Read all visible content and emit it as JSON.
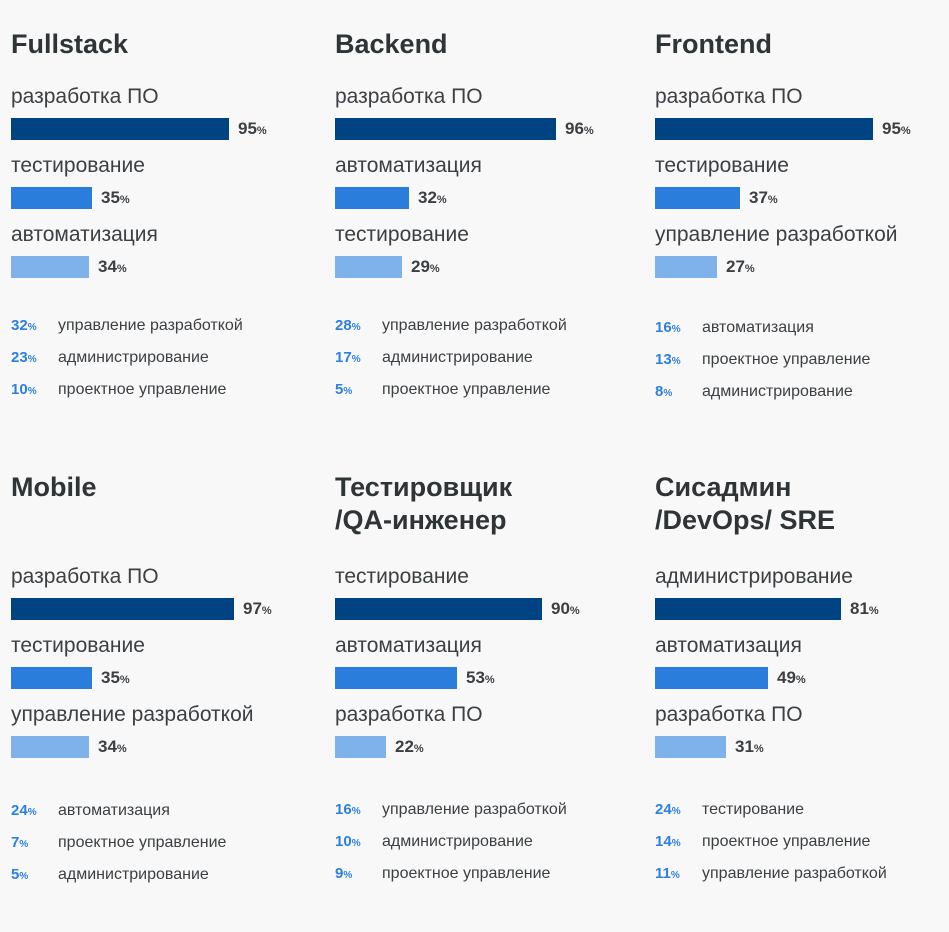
{
  "colors": {
    "rank1": "#004383",
    "rank2": "#2a7ddb",
    "rank3": "#7fb2ea",
    "accent": "#2d7fe0"
  },
  "unit": "%",
  "chart_data": [
    {
      "type": "bar",
      "title_lines": [
        "Fullstack"
      ],
      "bars": [
        {
          "label": "разработка ПО",
          "value": 95
        },
        {
          "label": "тестирование",
          "value": 35
        },
        {
          "label": "автоматизация",
          "value": 34
        }
      ],
      "others": [
        {
          "label": "управление разработкой",
          "value": 32
        },
        {
          "label": "администрирование",
          "value": 23
        },
        {
          "label": "проектное управление",
          "value": 10
        }
      ]
    },
    {
      "type": "bar",
      "title_lines": [
        "Backend"
      ],
      "bars": [
        {
          "label": "разработка ПО",
          "value": 96
        },
        {
          "label": "автоматизация",
          "value": 32
        },
        {
          "label": "тестирование",
          "value": 29
        }
      ],
      "others": [
        {
          "label": "управление разработкой",
          "value": 28
        },
        {
          "label": "администрирование",
          "value": 17
        },
        {
          "label": "проектное управление",
          "value": 5
        }
      ]
    },
    {
      "type": "bar",
      "title_lines": [
        "Frontend"
      ],
      "bars": [
        {
          "label": "разработка ПО",
          "value": 95
        },
        {
          "label": "тестирование",
          "value": 37
        },
        {
          "label": "управление разработкой",
          "value": 27
        }
      ],
      "others": [
        {
          "label": "автоматизация",
          "value": 16
        },
        {
          "label": "проектное управление",
          "value": 13
        },
        {
          "label": "администрирование",
          "value": 8
        }
      ]
    },
    {
      "type": "bar",
      "title_lines": [
        "Mobile"
      ],
      "bars": [
        {
          "label": "разработка ПО",
          "value": 97
        },
        {
          "label": "тестирование",
          "value": 35
        },
        {
          "label": "управление разработкой",
          "value": 34
        }
      ],
      "others": [
        {
          "label": "автоматизация",
          "value": 24
        },
        {
          "label": "проектное управление",
          "value": 7
        },
        {
          "label": "администрирование",
          "value": 5
        }
      ]
    },
    {
      "type": "bar",
      "title_lines": [
        "Тестировщик",
        "/QA-инженер"
      ],
      "bars": [
        {
          "label": "тестирование",
          "value": 90
        },
        {
          "label": "автоматизация",
          "value": 53
        },
        {
          "label": "разработка ПО",
          "value": 22
        }
      ],
      "others": [
        {
          "label": "управление разработкой",
          "value": 16
        },
        {
          "label": "администрирование",
          "value": 10
        },
        {
          "label": "проектное управление",
          "value": 9
        }
      ]
    },
    {
      "type": "bar",
      "title_lines": [
        "Сисадмин",
        "/DevOps/ SRE"
      ],
      "bars": [
        {
          "label": "администрирование",
          "value": 81
        },
        {
          "label": "автоматизация",
          "value": 49
        },
        {
          "label": "разработка ПО",
          "value": 31
        }
      ],
      "others": [
        {
          "label": "тестирование",
          "value": 24
        },
        {
          "label": "проектное управление",
          "value": 14
        },
        {
          "label": "управление разработкой",
          "value": 11
        }
      ]
    }
  ]
}
